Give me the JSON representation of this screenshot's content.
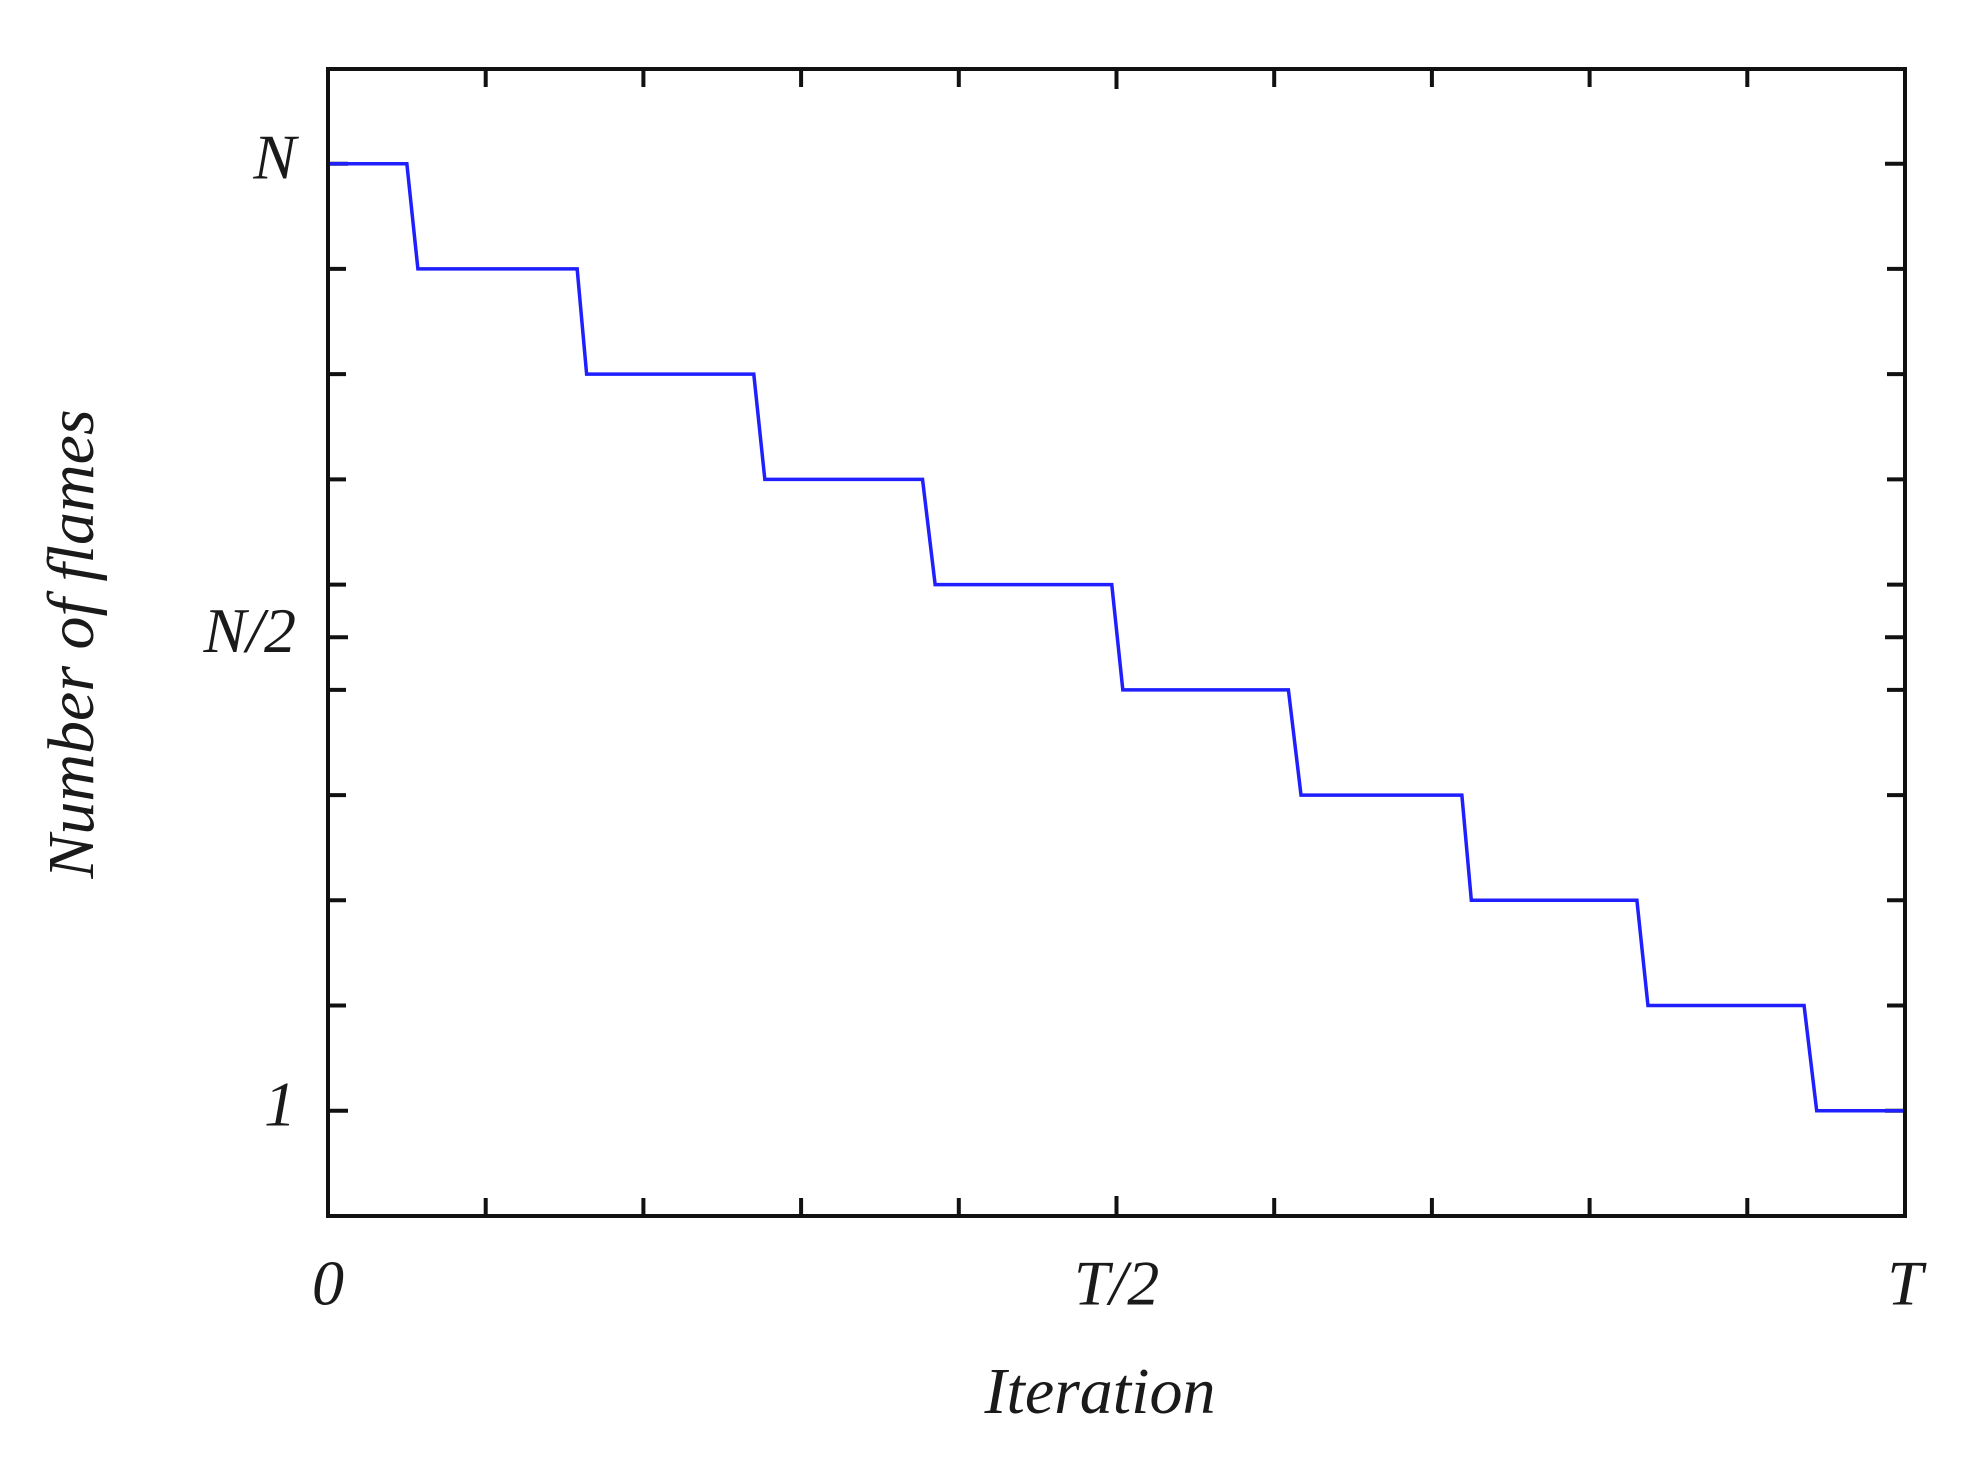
{
  "chart_data": {
    "type": "line",
    "xlabel": "Iteration",
    "ylabel": "Number of flames",
    "x": [
      0,
      0.05,
      0.057,
      0.158,
      0.164,
      0.27,
      0.277,
      0.377,
      0.385,
      0.497,
      0.504,
      0.609,
      0.617,
      0.719,
      0.725,
      0.83,
      0.837,
      0.936,
      0.944,
      1
    ],
    "series": [
      {
        "name": "flames",
        "color": "#1f1fff",
        "values": [
          10,
          10,
          9,
          9,
          8,
          8,
          7,
          7,
          6,
          6,
          5,
          5,
          4,
          4,
          3,
          3,
          2,
          2,
          1,
          1
        ]
      }
    ],
    "xlim": [
      0,
      1
    ],
    "ylim": [
      0,
      10.9
    ],
    "xticks": [
      0,
      {
        "value": 0.5,
        "label": "T/2"
      },
      {
        "value": 1,
        "label": "T"
      }
    ],
    "yticks": [
      1,
      {
        "value": 5.5,
        "label": "N/2"
      },
      {
        "value": 10,
        "label": "N"
      }
    ],
    "xminor_ticks": [
      0.1,
      0.2,
      0.3,
      0.4,
      0.6,
      0.7,
      0.8,
      0.9
    ],
    "yminor_ticks": [
      2,
      3,
      4,
      5,
      6,
      7,
      8,
      9
    ]
  }
}
